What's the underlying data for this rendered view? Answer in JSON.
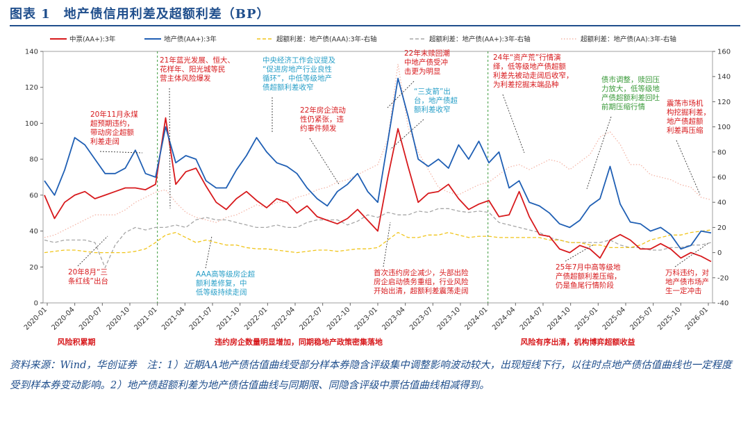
{
  "title": "图表 1　地产债信用利差及超额利差（BP）",
  "source_note": "资料来源：Wind，华创证券　注：1）近期AA地产债估值曲线受部分样本券隐含评级集中调整影响波动较大，出现短线下行，以往时点地产债估值曲线也一定程度受到样本券变动影响。2）地产债超额利差为地产债估值曲线与同期限、同隐含评级中票估值曲线相减得到。",
  "colors": {
    "red": "#d7191c",
    "blue": "#1f5fb4",
    "gold": "#f0c419",
    "gray": "#a6a6a6",
    "pink": "#f4b6a8",
    "green": "#3a9a3a",
    "navy": "#1f4e8c",
    "cyan": "#2aa0c8"
  },
  "chart_data": {
    "type": "line",
    "ylim_left": [
      0,
      140
    ],
    "ylim_right": [
      -40,
      160
    ],
    "yticks_left": [
      "0",
      "20",
      "40",
      "60",
      "80",
      "100",
      "120",
      "140"
    ],
    "yticks_right": [
      "-40",
      "-20",
      "0",
      "20",
      "40",
      "60",
      "80",
      "100",
      "120",
      "140",
      "160"
    ],
    "xticks": [
      "2020-01",
      "2020-04",
      "2020-07",
      "2020-10",
      "2021-01",
      "2021-04",
      "2021-07",
      "2021-10",
      "2022-01",
      "2022-04",
      "2022-07",
      "2022-10",
      "2023-01",
      "2023-04",
      "2023-07",
      "2023-10",
      "2024-01",
      "2024-04",
      "2024-07",
      "2024-10",
      "2025-01",
      "2025-04",
      "2025-07",
      "2025-10",
      "2026-01"
    ],
    "series": [
      {
        "name": "中票(AA+):3年",
        "axis": "left",
        "color": "#d7191c",
        "style": "solid",
        "values": [
          60,
          47,
          56,
          60,
          62,
          58,
          60,
          62,
          64,
          64,
          63,
          66,
          103,
          66,
          73,
          75,
          65,
          56,
          52,
          58,
          62,
          57,
          53,
          58,
          56,
          50,
          54,
          48,
          46,
          44,
          47,
          52,
          46,
          40,
          70,
          97,
          76,
          56,
          61,
          62,
          66,
          58,
          52,
          55,
          57,
          48,
          49,
          62,
          48,
          38,
          37,
          30,
          28,
          32,
          30,
          25,
          35,
          38,
          35,
          30,
          30,
          33,
          30,
          25,
          28,
          26,
          23
        ]
      },
      {
        "name": "地产债(AA+):3年",
        "axis": "left",
        "color": "#1f5fb4",
        "style": "solid",
        "values": [
          68,
          60,
          74,
          92,
          88,
          80,
          72,
          72,
          75,
          85,
          72,
          70,
          98,
          78,
          82,
          80,
          68,
          64,
          64,
          74,
          82,
          92,
          84,
          78,
          76,
          72,
          64,
          58,
          54,
          62,
          66,
          72,
          62,
          56,
          90,
          125,
          104,
          80,
          76,
          80,
          75,
          88,
          80,
          90,
          78,
          84,
          64,
          68,
          56,
          54,
          50,
          44,
          42,
          46,
          54,
          58,
          76,
          55,
          45,
          44,
          40,
          42,
          38,
          30,
          32,
          40,
          39
        ]
      },
      {
        "name": "超额利差：地产债(AAA):3年-右轴",
        "axis": "right",
        "color": "#f0c419",
        "style": "dashed",
        "values": [
          0,
          1,
          2,
          2,
          1,
          0,
          0,
          0,
          0,
          1,
          3,
          8,
          14,
          16,
          12,
          8,
          10,
          8,
          6,
          6,
          4,
          3,
          3,
          2,
          1,
          0,
          1,
          2,
          2,
          1,
          2,
          3,
          3,
          4,
          10,
          16,
          12,
          12,
          14,
          14,
          16,
          14,
          12,
          13,
          13,
          12,
          12,
          12,
          12,
          12,
          10,
          10,
          8,
          8,
          6,
          6,
          4,
          4,
          4,
          6,
          10,
          12,
          14,
          14,
          16,
          17,
          18
        ]
      },
      {
        "name": "超额利差：地产债(AA+):3年-右轴",
        "axis": "right",
        "color": "#a6a6a6",
        "style": "dashed",
        "values": [
          10,
          8,
          10,
          10,
          10,
          8,
          -12,
          6,
          16,
          20,
          18,
          20,
          20,
          22,
          20,
          26,
          28,
          26,
          26,
          24,
          22,
          20,
          20,
          22,
          20,
          20,
          24,
          26,
          26,
          26,
          22,
          25,
          30,
          28,
          32,
          30,
          30,
          33,
          32,
          35,
          35,
          33,
          32,
          33,
          32,
          24,
          22,
          20,
          18,
          16,
          12,
          10,
          8,
          8,
          8,
          8,
          10,
          6,
          4,
          4,
          2,
          2,
          4,
          4,
          6,
          6,
          8
        ]
      },
      {
        "name": "超额利差：地产债(AA):3年-右轴",
        "axis": "right",
        "color": "#f4b6a8",
        "style": "dotted",
        "values": [
          12,
          14,
          18,
          22,
          26,
          30,
          30,
          30,
          34,
          40,
          44,
          48,
          50,
          40,
          32,
          28,
          26,
          24,
          28,
          30,
          34,
          38,
          36,
          40,
          40,
          44,
          46,
          50,
          52,
          56,
          58,
          62,
          66,
          70,
          90,
          150,
          100,
          80,
          66,
          52,
          48,
          46,
          50,
          54,
          56,
          62,
          68,
          70,
          66,
          70,
          74,
          72,
          66,
          72,
          78,
          92,
          96,
          86,
          70,
          70,
          62,
          60,
          58,
          54,
          52,
          44,
          42
        ]
      }
    ],
    "legend": [
      "中票(AA+):3年",
      "地产债(AA+):3年",
      "超额利差：地产债(AAA):3年-右轴",
      "超额利差：地产债(AA+):3年-右轴",
      "超额利差：地产债(AA):3年-右轴"
    ],
    "phases": [
      "风险积累期",
      "违约房企数量明显增加，同期稳地产政策密集落地",
      "风险有序出清，机构博弈超额收益"
    ],
    "annotations": [
      {
        "color": "navy-red",
        "lines": [
          "20年11月永煤",
          "超预期违约，",
          "带动房企超额",
          "利差走阔"
        ]
      },
      {
        "color": "navy-red",
        "lines": [
          "20年8月“三",
          "条红线”出台"
        ]
      },
      {
        "color": "navy-red",
        "lines": [
          "21年蓝光发展、恒大、",
          "花样年、阳光城等民",
          "营主体风险爆发"
        ]
      },
      {
        "color": "navy-cyan",
        "lines": [
          "中央经济工作会议提及",
          "“促进房地产行业良性",
          "循环”，中低等级地产",
          "债超额利差收窄"
        ]
      },
      {
        "color": "navy-red",
        "lines": [
          "22年房企流动",
          "性仍紧张，违",
          "约事件频发"
        ]
      },
      {
        "color": "navy-cyan",
        "lines": [
          "AAA高等级房企超",
          "额利差修复，中",
          "低等级持续走阔"
        ]
      },
      {
        "color": "navy-red",
        "lines": [
          "22年末赎回潮",
          "中地产债受冲",
          "击更为明显"
        ]
      },
      {
        "color": "navy-cyan",
        "lines": [
          "“三支箭”出",
          "台，地产债超",
          "额利差收窄"
        ]
      },
      {
        "color": "navy-red",
        "lines": [
          "首次违约房企减少，头部出险",
          "房企启动债务重组，行业风险",
          "开始出清，超额利差震荡走阔"
        ]
      },
      {
        "color": "navy-red",
        "lines": [
          "24年“资产荒”行情演",
          "绎，低等级地产债超额",
          "利差先被动走阔后收窄，",
          "为利差挖掘末端品种"
        ]
      },
      {
        "color": "navy-green",
        "lines": [
          "债市调整，赎回压",
          "力放大，低等级地",
          "产债超额利差回吐",
          "前期压缩行情"
        ]
      },
      {
        "color": "navy-red",
        "lines": [
          "25年7月中高等级地",
          "产债超额利差压缩，",
          "仍是鱼尾行情阶段"
        ]
      },
      {
        "color": "navy-red",
        "lines": [
          "震荡市场机",
          "构挖掘利差，",
          "地产债超额",
          "利差再压缩"
        ]
      },
      {
        "color": "navy-red",
        "lines": [
          "万科违约，对",
          "地产债市场产",
          "生一定冲击"
        ]
      }
    ]
  }
}
